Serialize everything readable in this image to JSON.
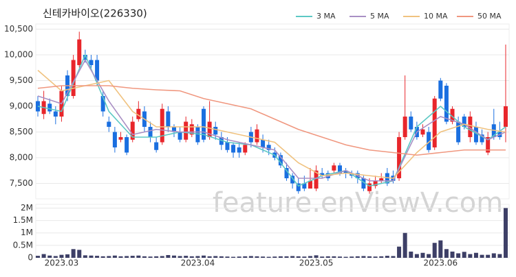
{
  "chart_data": {
    "type": "candlestick",
    "title": "신테카바이오(226330)",
    "watermark": "feature.enViewV.com",
    "categories": [
      null,
      null,
      null,
      null,
      "2023.03",
      null,
      null,
      null,
      null,
      null,
      null,
      null,
      null,
      null,
      null,
      null,
      null,
      null,
      null,
      null,
      null,
      null,
      null,
      null,
      null,
      null,
      null,
      "2023.04",
      null,
      null,
      null,
      null,
      null,
      null,
      null,
      null,
      null,
      null,
      null,
      null,
      null,
      null,
      null,
      null,
      null,
      null,
      null,
      "2023.05",
      null,
      null,
      null,
      null,
      null,
      null,
      null,
      null,
      null,
      null,
      null,
      null,
      null,
      null,
      null,
      null,
      null,
      null,
      null,
      null,
      "2023.06",
      null,
      null,
      null,
      null,
      null,
      null,
      null,
      null,
      null,
      null,
      null
    ],
    "open": [
      9100,
      8850,
      9050,
      8900,
      8800,
      9600,
      9200,
      9800,
      10000,
      9900,
      9900,
      9200,
      8700,
      8500,
      8350,
      8400,
      8350,
      8750,
      8900,
      8600,
      8300,
      8300,
      8900,
      8600,
      8500,
      8350,
      8450,
      8600,
      8950,
      8400,
      8600,
      8400,
      8300,
      8250,
      8200,
      8100,
      8500,
      8300,
      8350,
      8250,
      8100,
      8050,
      7800,
      7650,
      7500,
      7500,
      7400,
      7400,
      7700,
      7700,
      7750,
      7850,
      7750,
      7700,
      7700,
      7600,
      7350,
      7450,
      7550,
      7700,
      7650,
      7600,
      8400,
      8800,
      8600,
      8450,
      8500,
      8200,
      9500,
      9400,
      8700,
      8700,
      8800,
      8400,
      8600,
      8450,
      8100,
      8650,
      8500,
      8600
    ],
    "high": [
      9200,
      9300,
      9150,
      9000,
      9400,
      9700,
      10000,
      10450,
      10100,
      10000,
      10000,
      9300,
      8800,
      8600,
      8500,
      8450,
      8800,
      9100,
      9000,
      8700,
      8400,
      9050,
      9000,
      8650,
      8600,
      8800,
      8750,
      8650,
      9000,
      9100,
      8700,
      8500,
      8400,
      8300,
      8300,
      8300,
      8600,
      8650,
      8450,
      8350,
      8200,
      8100,
      7900,
      7700,
      7600,
      7650,
      7800,
      7850,
      7800,
      7750,
      7900,
      7900,
      7800,
      7750,
      7750,
      7650,
      7600,
      7650,
      7700,
      7800,
      7750,
      8500,
      9600,
      8900,
      8700,
      8650,
      8600,
      9200,
      9550,
      9450,
      9000,
      8800,
      8850,
      8900,
      8700,
      8550,
      8500,
      8950,
      8700,
      10200
    ],
    "low": [
      8800,
      8750,
      8850,
      8650,
      8700,
      9100,
      9150,
      9750,
      9850,
      9700,
      9400,
      8800,
      8500,
      8100,
      8300,
      8050,
      8300,
      8700,
      8500,
      8300,
      8100,
      8250,
      8500,
      8400,
      8300,
      8300,
      8400,
      8250,
      8300,
      8350,
      8350,
      8150,
      8100,
      8000,
      8000,
      8050,
      8200,
      8250,
      8100,
      8050,
      7950,
      7800,
      7550,
      7400,
      7300,
      7350,
      7400,
      7350,
      7600,
      7550,
      7700,
      7650,
      7600,
      7600,
      7500,
      7350,
      7300,
      7400,
      7500,
      7450,
      7500,
      7550,
      8350,
      8500,
      8350,
      8400,
      8100,
      8150,
      9100,
      8650,
      8650,
      8250,
      8550,
      8300,
      8250,
      8250,
      8050,
      8350,
      8350,
      8300
    ],
    "close": [
      8900,
      9100,
      8900,
      8800,
      9300,
      9200,
      9900,
      10300,
      9900,
      9800,
      9500,
      8900,
      8600,
      8200,
      8400,
      8100,
      8700,
      8950,
      8600,
      8400,
      8150,
      8950,
      8600,
      8500,
      8350,
      8700,
      8650,
      8300,
      8350,
      8700,
      8450,
      8250,
      8150,
      8100,
      8100,
      8250,
      8300,
      8550,
      8200,
      8150,
      8000,
      7850,
      7600,
      7500,
      7350,
      7400,
      7550,
      7750,
      7650,
      7600,
      7850,
      7700,
      7700,
      7650,
      7600,
      7400,
      7500,
      7550,
      7600,
      7500,
      7550,
      8400,
      8800,
      8550,
      8400,
      8550,
      8150,
      9150,
      9150,
      8700,
      8950,
      8300,
      8600,
      8800,
      8300,
      8300,
      8400,
      8400,
      8400,
      9000
    ],
    "volume": [
      80000,
      150000,
      90000,
      70000,
      120000,
      140000,
      350000,
      320000,
      100000,
      90000,
      80000,
      60000,
      70000,
      90000,
      60000,
      70000,
      80000,
      90000,
      60000,
      50000,
      60000,
      70000,
      110000,
      90000,
      70000,
      80000,
      60000,
      70000,
      90000,
      60000,
      70000,
      60000,
      50000,
      40000,
      50000,
      60000,
      70000,
      60000,
      50000,
      40000,
      50000,
      60000,
      60000,
      70000,
      60000,
      50000,
      70000,
      100000,
      50000,
      60000,
      60000,
      50000,
      40000,
      50000,
      60000,
      70000,
      60000,
      50000,
      60000,
      80000,
      70000,
      450000,
      1000000,
      250000,
      150000,
      200000,
      150000,
      600000,
      700000,
      350000,
      250000,
      180000,
      240000,
      150000,
      200000,
      120000,
      120000,
      180000,
      150000,
      2000000
    ],
    "up_color": "#e8262b",
    "down_color": "#1a6fe0",
    "volume_color": "#3d3f66",
    "ma_x": [
      0,
      4,
      8,
      12,
      16,
      20,
      24,
      28,
      32,
      36,
      40,
      44,
      48,
      52,
      56,
      60,
      64,
      68,
      72,
      76,
      79
    ],
    "ma": [
      {
        "name": "3 MA",
        "color": "#5cc8c4",
        "values": [
          9000,
          8900,
          10000,
          8900,
          8400,
          8400,
          8500,
          8450,
          8300,
          8250,
          8050,
          7450,
          7650,
          7750,
          7450,
          7550,
          8600,
          9000,
          8600,
          8350,
          8600
        ]
      },
      {
        "name": "5 MA",
        "color": "#a98fc4",
        "values": [
          9200,
          9050,
          9900,
          9100,
          8450,
          8550,
          8500,
          8500,
          8350,
          8250,
          8150,
          7600,
          7600,
          7750,
          7550,
          7550,
          8500,
          8800,
          8650,
          8350,
          8500
        ]
      },
      {
        "name": "10 MA",
        "color": "#f0c27f",
        "values": [
          9700,
          9300,
          9400,
          9500,
          8900,
          8600,
          8600,
          8600,
          8500,
          8400,
          8300,
          7900,
          7650,
          7700,
          7650,
          7600,
          8100,
          8500,
          8650,
          8550,
          8500
        ]
      },
      {
        "name": "50 MA",
        "color": "#f0977f",
        "values": [
          9350,
          9400,
          9400,
          9400,
          9350,
          9320,
          9300,
          9150,
          9050,
          8950,
          8750,
          8550,
          8400,
          8250,
          8150,
          8100,
          8050,
          8100,
          8150,
          8150,
          8150
        ]
      }
    ],
    "ylim": [
      7200,
      10600
    ],
    "yticks": [
      {
        "value": 7500,
        "label": "7,500"
      },
      {
        "value": 8000,
        "label": "8,000"
      },
      {
        "value": 8500,
        "label": "8,500"
      },
      {
        "value": 9000,
        "label": "9,000"
      },
      {
        "value": 9500,
        "label": "9,500"
      },
      {
        "value": 10000,
        "label": "10,000"
      },
      {
        "value": 10500,
        "label": "10,500"
      }
    ],
    "volume_ylim": [
      0,
      2150000
    ],
    "volume_ticks": [
      0,
      {
        "value": 500000,
        "label": "0.5M"
      },
      {
        "value": 1000000,
        "label": "1M"
      },
      {
        "value": 1500000,
        "label": "1.5M"
      },
      {
        "value": 2000000,
        "label": "2M"
      }
    ],
    "grid": true
  }
}
